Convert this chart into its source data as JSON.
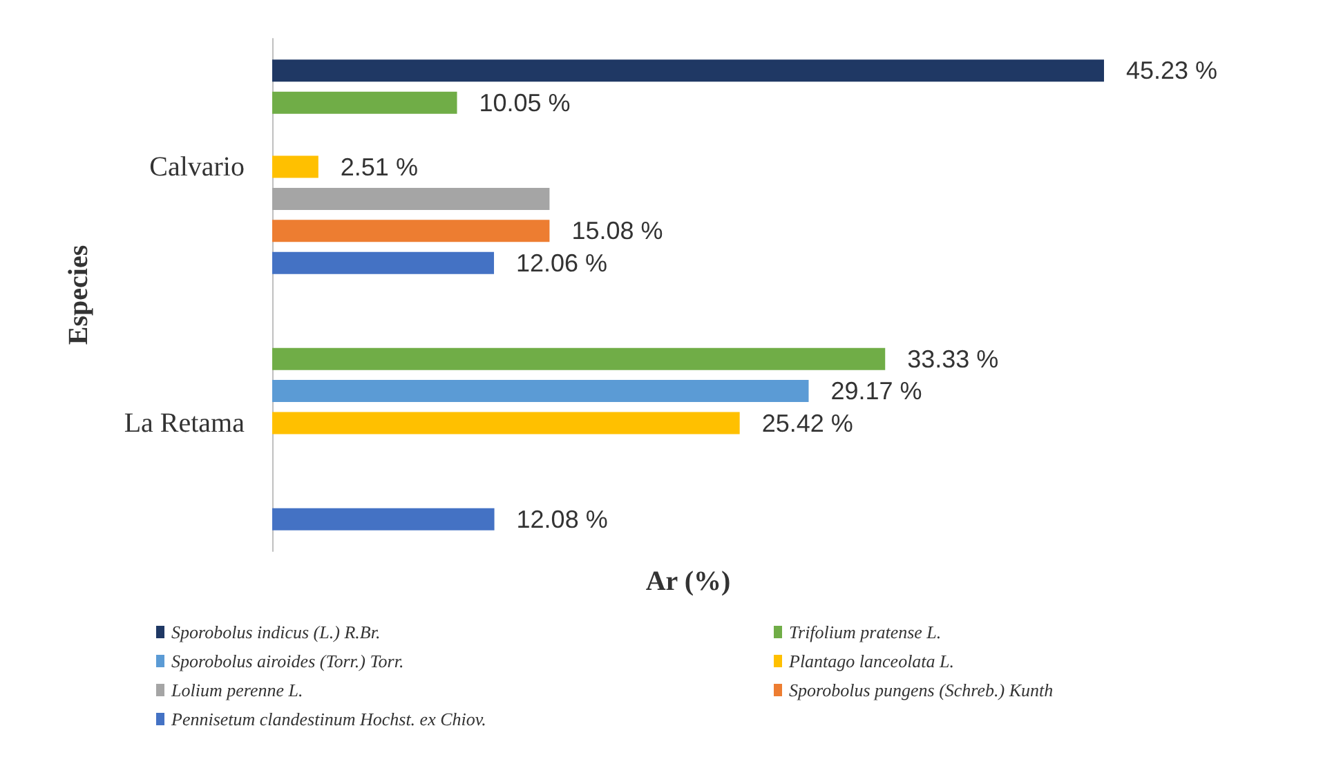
{
  "chart_data": {
    "type": "bar",
    "orientation": "horizontal",
    "xlabel": "Ar (%)",
    "ylabel": "Especies",
    "categories": [
      "Calvario",
      "La Retama"
    ],
    "legend": "bottom",
    "grid": false,
    "series": [
      {
        "name": "Sporobolus indicus (L.) R.Br.",
        "color": "#1f3864",
        "values": [
          45.23,
          null
        ],
        "value_labels": [
          "45.23 %",
          null
        ]
      },
      {
        "name": "Trifolium pratense L.",
        "color": "#70ad47",
        "values": [
          10.05,
          33.33
        ],
        "value_labels": [
          "10.05 %",
          "33.33 %"
        ]
      },
      {
        "name": "Sporobolus airoides (Torr.) Torr.",
        "color": "#5b9bd5",
        "values": [
          null,
          29.17
        ],
        "value_labels": [
          null,
          "29.17 %"
        ]
      },
      {
        "name": "Plantago lanceolata L.",
        "color": "#ffc000",
        "values": [
          2.51,
          25.42
        ],
        "value_labels": [
          "2.51 %",
          "25.42 %"
        ]
      },
      {
        "name": "Lolium perenne L.",
        "color": "#a5a5a5",
        "values": [
          15.08,
          null
        ],
        "value_labels": [
          null,
          null
        ]
      },
      {
        "name": "Sporobolus pungens (Schreb.) Kunth",
        "color": "#ed7d31",
        "values": [
          15.08,
          null
        ],
        "value_labels": [
          "15.08 %",
          null
        ]
      },
      {
        "name": "Pennisetum clandestinum Hochst. ex Chiov.",
        "color": "#4472c4",
        "values": [
          12.06,
          12.08
        ],
        "value_labels": [
          "12.06 %",
          "12.08 %"
        ]
      }
    ]
  }
}
